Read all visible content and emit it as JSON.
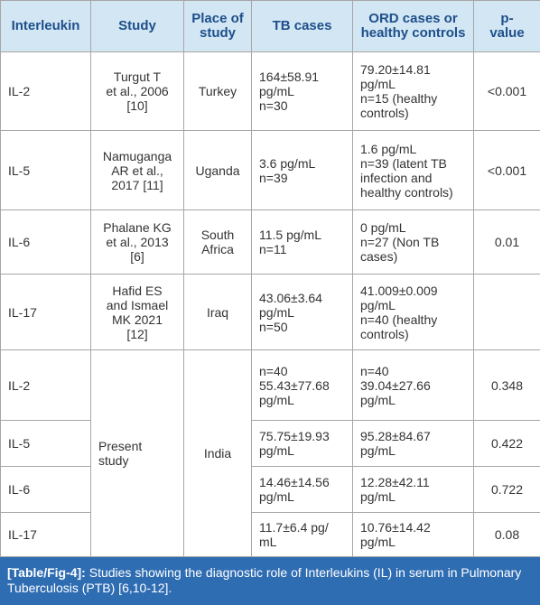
{
  "table": {
    "header": [
      "Interleukin",
      "Study",
      "Place of\nstudy",
      "TB cases",
      "ORD cases or\nhealthy controls",
      "p-\nvalue"
    ],
    "rows": [
      {
        "interleukin": "IL-2",
        "study": "Turgut T\net al., 2006\n[10]",
        "place": "Turkey",
        "tb": "164±58.91\npg/mL\nn=30",
        "ord": "79.20±14.81\npg/mL\nn=15 (healthy\ncontrols)",
        "p": "<0.001"
      },
      {
        "interleukin": "IL-5",
        "study": "Namuganga\nAR et al.,\n2017 [11]",
        "place": "Uganda",
        "tb": "3.6 pg/mL\nn=39",
        "ord": "1.6 pg/mL\nn=39 (latent TB\ninfection and\nhealthy controls)",
        "p": "<0.001"
      },
      {
        "interleukin": "IL-6",
        "study": "Phalane KG\net al., 2013\n[6]",
        "place": "South\nAfrica",
        "tb": "11.5 pg/mL\nn=11",
        "ord": "0 pg/mL\nn=27 (Non TB\ncases)",
        "p": "0.01"
      },
      {
        "interleukin": "IL-17",
        "study": "Hafid ES\nand Ismael\nMK 2021\n[12]",
        "place": "Iraq",
        "tb": "43.06±3.64\npg/mL\nn=50",
        "ord": "41.009±0.009\npg/mL\nn=40 (healthy\ncontrols)"
      }
    ],
    "present": {
      "study": "Present\nstudy",
      "place": "India",
      "rows": [
        {
          "interleukin": "IL-2",
          "tb": "n=40\n55.43±77.68\npg/mL",
          "ord": "n=40\n39.04±27.66\npg/mL",
          "p": "0.348"
        },
        {
          "interleukin": "IL-5",
          "tb": "75.75±19.93\npg/mL",
          "ord": "95.28±84.67\npg/mL",
          "p": "0.422"
        },
        {
          "interleukin": "IL-6",
          "tb": "14.46±14.56\npg/mL",
          "ord": "12.28±42.11\npg/mL",
          "p": "0.722"
        },
        {
          "interleukin": "IL-17",
          "tb": "11.7±6.4 pg/\nmL",
          "ord": "10.76±14.42\npg/mL",
          "p": "0.08"
        }
      ]
    },
    "caption": {
      "label": "[Table/Fig-4]:",
      "text": "Studies showing the diagnostic role of Interleukins (IL) in serum in Pulmonary Tuberculosis (PTB) [6,10-12]."
    }
  }
}
